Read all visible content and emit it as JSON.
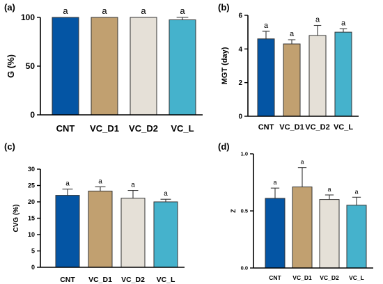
{
  "colors": [
    "#0455a4",
    "#c1a070",
    "#e5e0d7",
    "#45b2cc"
  ],
  "chart_data": [
    {
      "type": "bar",
      "panel": "(a)",
      "ylabel": "G (%)",
      "categories": [
        "CNT",
        "VC_D1",
        "VC_D2",
        "VC_L"
      ],
      "values": [
        100,
        100,
        100,
        97.5
      ],
      "errors": [
        0,
        0,
        0,
        2.5
      ],
      "significance": [
        "a",
        "a",
        "a",
        "a"
      ],
      "ylim": [
        0,
        100
      ],
      "yticks": [
        0,
        50,
        100
      ],
      "ytick_labels": [
        "0",
        "50",
        "100"
      ]
    },
    {
      "type": "bar",
      "panel": "(b)",
      "ylabel": "MGT (day)",
      "categories": [
        "CNT",
        "VC_D1",
        "VC_D2",
        "VC_L"
      ],
      "values": [
        4.6,
        4.3,
        4.8,
        5.0
      ],
      "errors": [
        0.45,
        0.25,
        0.6,
        0.2
      ],
      "significance": [
        "a",
        "a",
        "a",
        "a"
      ],
      "ylim": [
        0,
        6
      ],
      "yticks": [
        0,
        2,
        4,
        6
      ],
      "ytick_labels": [
        "0",
        "2",
        "4",
        "6"
      ]
    },
    {
      "type": "bar",
      "panel": "(c)",
      "ylabel": "CVG (%)",
      "categories": [
        "CNT",
        "VC_D1",
        "VC_D2",
        "VC_L"
      ],
      "values": [
        22,
        23.3,
        21.1,
        20
      ],
      "errors": [
        1.9,
        1.3,
        2.4,
        0.8
      ],
      "significance": [
        "a",
        "a",
        "a",
        "a"
      ],
      "ylim": [
        0,
        30
      ],
      "yticks": [
        0,
        5,
        10,
        15,
        20,
        25,
        30
      ],
      "ytick_labels": [
        "0",
        "5",
        "10",
        "15",
        "20",
        "25",
        "30"
      ]
    },
    {
      "type": "bar",
      "panel": "(d)",
      "ylabel": "Z",
      "categories": [
        "CNT",
        "VC_D1",
        "VC_D2",
        "VC_L"
      ],
      "values": [
        0.61,
        0.71,
        0.6,
        0.55
      ],
      "errors": [
        0.09,
        0.17,
        0.04,
        0.07
      ],
      "significance": [
        "a",
        "a",
        "a",
        "a"
      ],
      "ylim": [
        0,
        1.0
      ],
      "yticks": [
        0,
        0.5,
        1.0
      ],
      "ytick_labels": [
        "0.0",
        "0.5",
        "1.0"
      ]
    }
  ]
}
